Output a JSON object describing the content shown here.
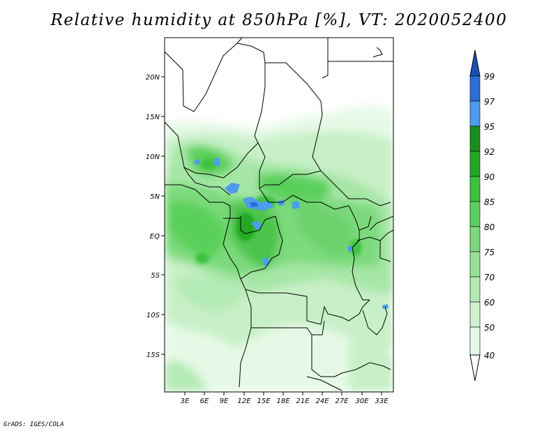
{
  "title": "Relative humidity at 850hPa [%], VT: 2020052400",
  "footer": "GrADS: IGES/COLA",
  "map": {
    "lon_range": [
      0,
      34
    ],
    "lat_range": [
      -20,
      25
    ],
    "lat_ticks": [
      "20N",
      "15N",
      "10N",
      "5N",
      "EQ",
      "5S",
      "10S",
      "15S"
    ],
    "lon_ticks": [
      "3E",
      "6E",
      "9E",
      "12E",
      "15E",
      "18E",
      "21E",
      "24E",
      "27E",
      "30E",
      "33E"
    ],
    "high_humidity_spots": "blue patches near 12-15E, 0-5N"
  },
  "colorbar": {
    "levels": [
      "40",
      "50",
      "60",
      "70",
      "75",
      "80",
      "85",
      "90",
      "92",
      "95",
      "97",
      "99"
    ],
    "colors": [
      "#ffffff",
      "#e6f9e6",
      "#d0f2d0",
      "#b4eab4",
      "#98e298",
      "#7cda7c",
      "#5ad05a",
      "#3cc23c",
      "#22a822",
      "#1a8e1a",
      "#4c9cf0",
      "#2a6fd8",
      "#1a52b8"
    ]
  }
}
